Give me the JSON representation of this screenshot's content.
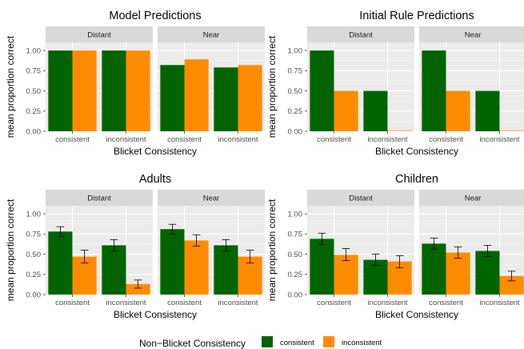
{
  "chart_data": [
    {
      "type": "bar",
      "title": "Model Predictions",
      "xlabel": "Blicket Consistency",
      "ylabel": "mean proportion correct",
      "ylim": [
        0,
        1.1
      ],
      "yticks": [
        "0.00",
        "0.25",
        "0.50",
        "0.75",
        "1.00"
      ],
      "error_bars": false,
      "facets": [
        {
          "label": "Distant",
          "categories": [
            "consistent",
            "inconsistent"
          ],
          "series": [
            {
              "name": "consistent",
              "values": [
                1.0,
                1.0
              ]
            },
            {
              "name": "inconsistent",
              "values": [
                1.0,
                1.0
              ]
            }
          ]
        },
        {
          "label": "Near",
          "categories": [
            "consistent",
            "inconsistent"
          ],
          "series": [
            {
              "name": "consistent",
              "values": [
                0.82,
                0.79
              ]
            },
            {
              "name": "inconsistent",
              "values": [
                0.89,
                0.82
              ]
            }
          ]
        }
      ]
    },
    {
      "type": "bar",
      "title": "Initial Rule Predictions",
      "xlabel": "Blicket Consistency",
      "ylabel": "mean proportion correct",
      "ylim": [
        0,
        1.1
      ],
      "yticks": [
        "0.00",
        "0.25",
        "0.50",
        "0.75",
        "1.00"
      ],
      "error_bars": false,
      "facets": [
        {
          "label": "Distant",
          "categories": [
            "consistent",
            "inconsistent"
          ],
          "series": [
            {
              "name": "consistent",
              "values": [
                1.0,
                0.5
              ]
            },
            {
              "name": "inconsistent",
              "values": [
                0.5,
                0.0
              ]
            }
          ]
        },
        {
          "label": "Near",
          "categories": [
            "consistent",
            "inconsistent"
          ],
          "series": [
            {
              "name": "consistent",
              "values": [
                1.0,
                0.5
              ]
            },
            {
              "name": "inconsistent",
              "values": [
                0.5,
                0.0
              ]
            }
          ]
        }
      ]
    },
    {
      "type": "bar",
      "title": "Adults",
      "xlabel": "Blicket Consistency",
      "ylabel": "mean proportion correct",
      "ylim": [
        0,
        1.1
      ],
      "yticks": [
        "0.00",
        "0.25",
        "0.50",
        "0.75",
        "1.00"
      ],
      "error_bars": true,
      "facets": [
        {
          "label": "Distant",
          "categories": [
            "consistent",
            "inconsistent"
          ],
          "series": [
            {
              "name": "consistent",
              "values": [
                0.78,
                0.61
              ],
              "err_low": [
                0.72,
                0.54
              ],
              "err_high": [
                0.84,
                0.68
              ]
            },
            {
              "name": "inconsistent",
              "values": [
                0.47,
                0.13
              ],
              "err_low": [
                0.39,
                0.08
              ],
              "err_high": [
                0.55,
                0.18
              ]
            }
          ]
        },
        {
          "label": "Near",
          "categories": [
            "consistent",
            "inconsistent"
          ],
          "series": [
            {
              "name": "consistent",
              "values": [
                0.81,
                0.61
              ],
              "err_low": [
                0.75,
                0.54
              ],
              "err_high": [
                0.87,
                0.68
              ]
            },
            {
              "name": "inconsistent",
              "values": [
                0.67,
                0.47
              ],
              "err_low": [
                0.6,
                0.39
              ],
              "err_high": [
                0.74,
                0.55
              ]
            }
          ]
        }
      ]
    },
    {
      "type": "bar",
      "title": "Children",
      "xlabel": "Blicket Consistency",
      "ylabel": "mean proportion correct",
      "ylim": [
        0,
        1.1
      ],
      "yticks": [
        "0.00",
        "0.25",
        "0.50",
        "0.75",
        "1.00"
      ],
      "error_bars": true,
      "facets": [
        {
          "label": "Distant",
          "categories": [
            "consistent",
            "inconsistent"
          ],
          "series": [
            {
              "name": "consistent",
              "values": [
                0.69,
                0.43
              ],
              "err_low": [
                0.62,
                0.36
              ],
              "err_high": [
                0.76,
                0.5
              ]
            },
            {
              "name": "inconsistent",
              "values": [
                0.49,
                0.41
              ],
              "err_low": [
                0.42,
                0.33
              ],
              "err_high": [
                0.57,
                0.48
              ]
            }
          ]
        },
        {
          "label": "Near",
          "categories": [
            "consistent",
            "inconsistent"
          ],
          "series": [
            {
              "name": "consistent",
              "values": [
                0.63,
                0.54
              ],
              "err_low": [
                0.56,
                0.47
              ],
              "err_high": [
                0.7,
                0.61
              ]
            },
            {
              "name": "inconsistent",
              "values": [
                0.52,
                0.23
              ],
              "err_low": [
                0.45,
                0.17
              ],
              "err_high": [
                0.59,
                0.29
              ]
            }
          ]
        }
      ]
    }
  ],
  "legend": {
    "title": "Non−Blicket Consistency",
    "items": [
      {
        "label": "consistent",
        "color": "#006400"
      },
      {
        "label": "inconsistent",
        "color": "#ff8c00"
      }
    ],
    "placement": "bottom"
  },
  "colors": {
    "consistent": "#006400",
    "inconsistent": "#ff8c00",
    "panel_bg": "#ebebeb",
    "strip_bg": "#d9d9d9",
    "grid": "#ffffff"
  }
}
